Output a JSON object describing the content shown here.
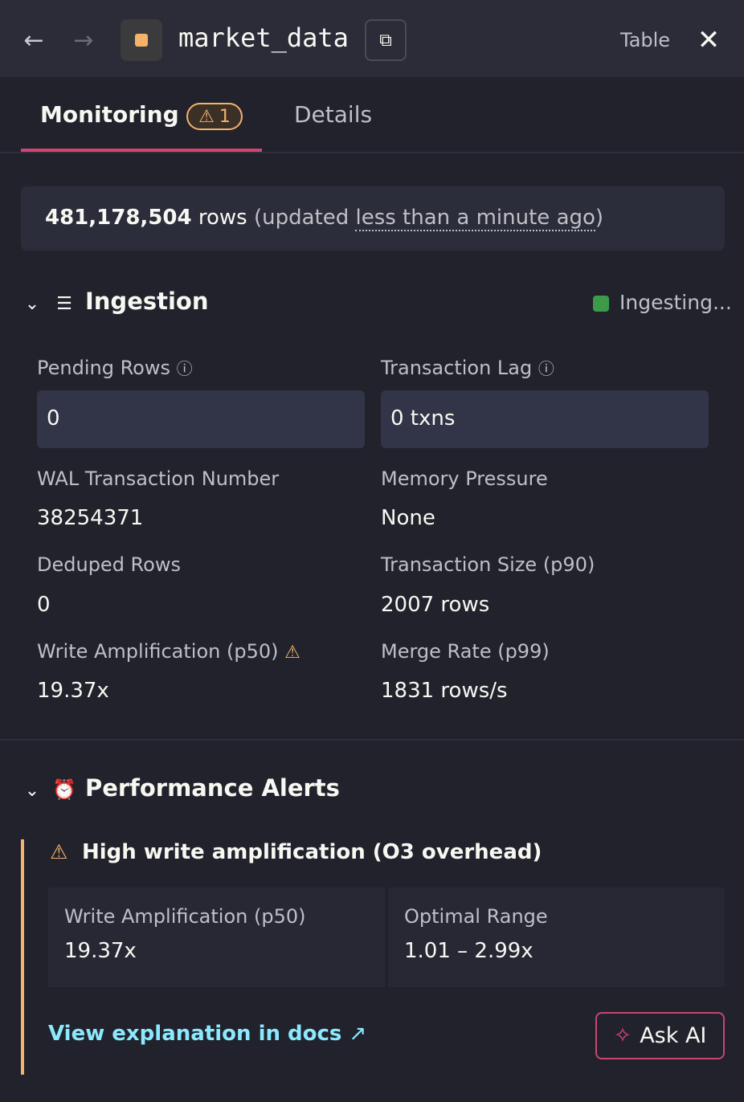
{
  "header": {
    "title": "market_data",
    "type_label": "Table",
    "accent": "#f5b26b"
  },
  "tabs": [
    {
      "label": "Monitoring",
      "badge": "1",
      "active": true
    },
    {
      "label": "Details"
    }
  ],
  "summary": {
    "count": "481,178,504",
    "unit": "rows",
    "prefix": "(updated",
    "time": "less than a minute ago",
    "suffix": ")"
  },
  "ingestion": {
    "title": "Ingestion",
    "status": "Ingesting...",
    "status_color": "#3d9a48",
    "pending_label": "Pending Rows",
    "pending_value": "0",
    "lag_label": "Transaction Lag",
    "lag_value": "0 txns",
    "metrics": [
      {
        "label": "WAL Transaction Number",
        "value": "38254371"
      },
      {
        "label": "Memory Pressure",
        "value": "None"
      },
      {
        "label": "Deduped Rows",
        "value": "0"
      },
      {
        "label": "Transaction Size (p90)",
        "value": "2007 rows"
      },
      {
        "label": "Write Amplification (p50)",
        "value": "19.37x",
        "warning": true
      },
      {
        "label": "Merge Rate (p99)",
        "value": "1831 rows/s"
      }
    ]
  },
  "alerts": {
    "title": "Performance Alerts",
    "alert": {
      "title": "High write amplification (O3 overhead)",
      "cells": [
        {
          "label": "Write Amplification (p50)",
          "value": "19.37x"
        },
        {
          "label": "Optimal Range",
          "value": "1.01 – 2.99x"
        }
      ],
      "link": "View explanation in docs",
      "ask": "Ask AI"
    }
  }
}
